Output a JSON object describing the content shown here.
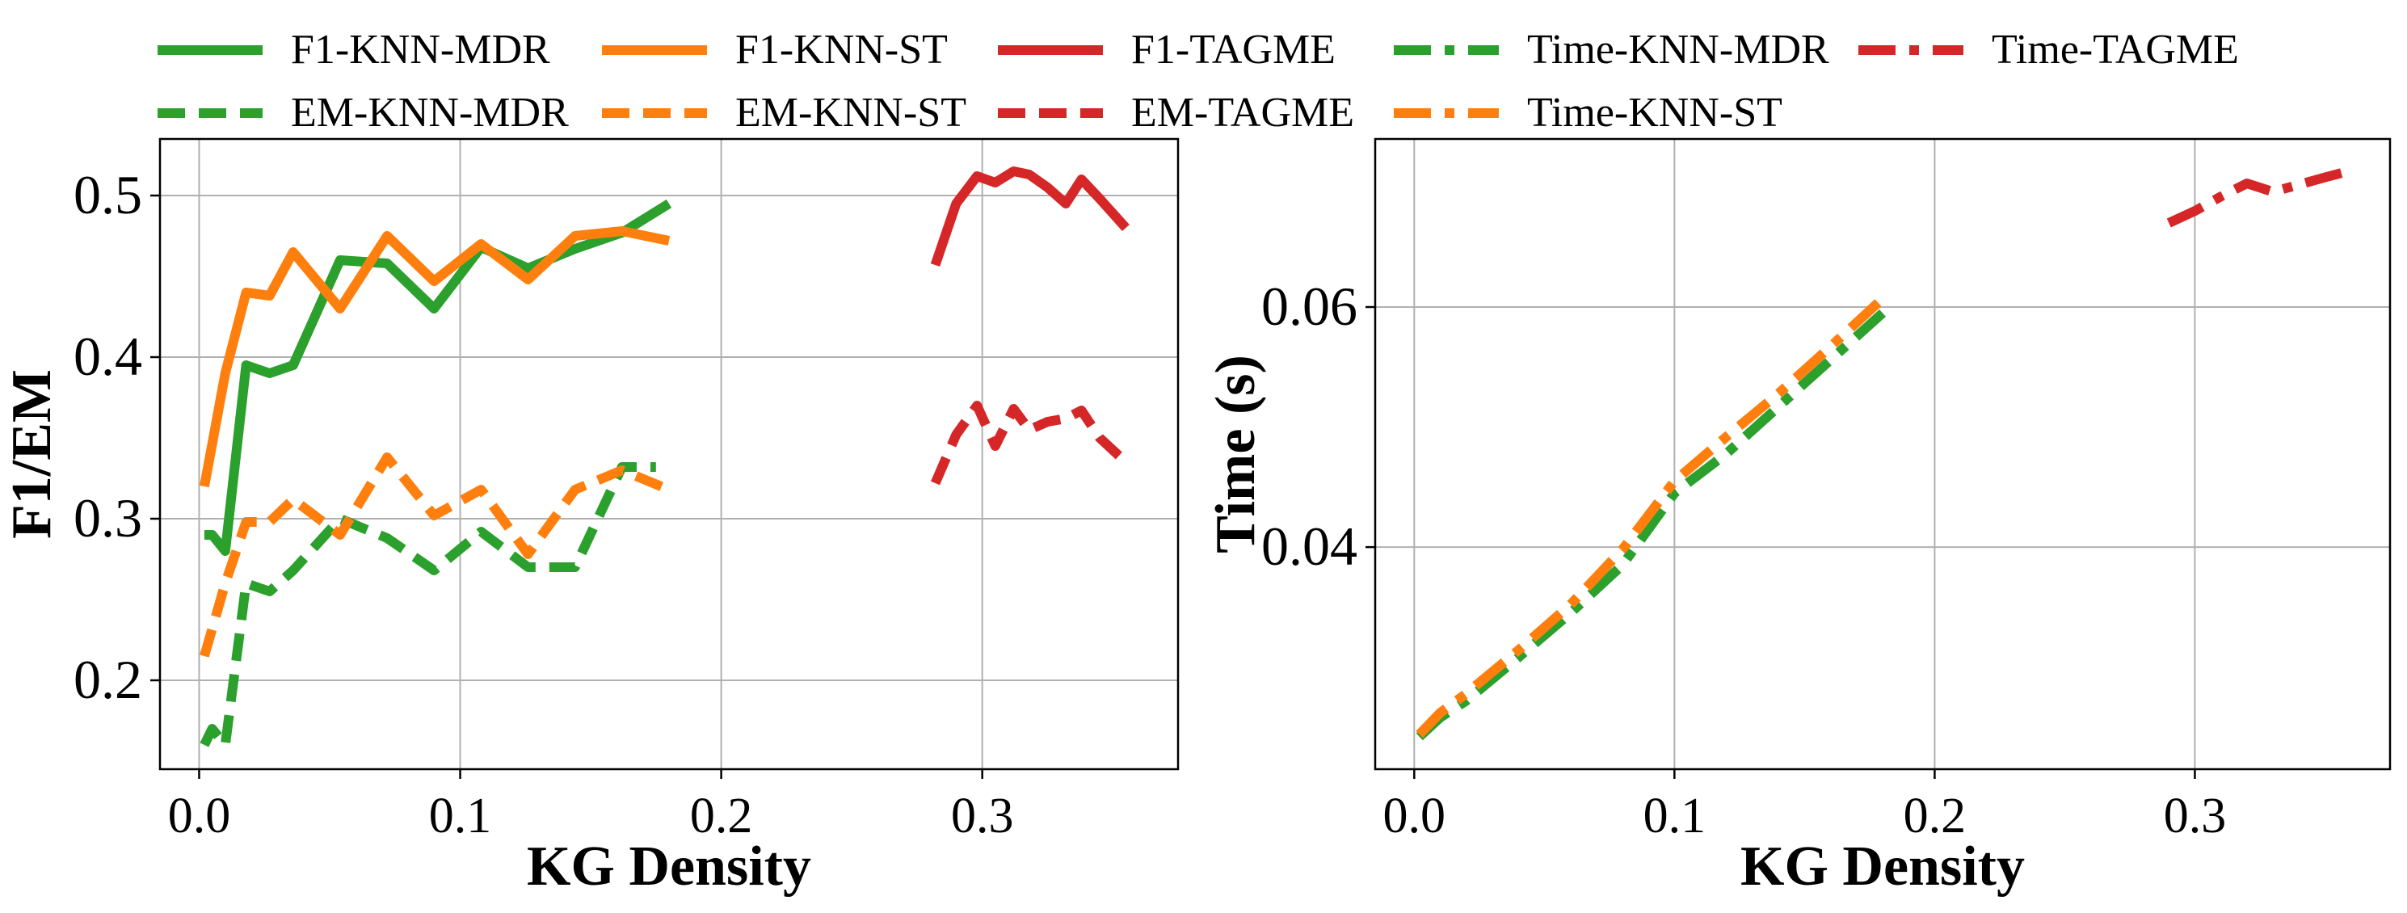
{
  "legend": [
    {
      "label": "F1-KNN-MDR",
      "color": "#2ca02c",
      "style": "solid"
    },
    {
      "label": "F1-KNN-ST",
      "color": "#ff7f0e",
      "style": "solid"
    },
    {
      "label": "F1-TAGME",
      "color": "#d62728",
      "style": "solid"
    },
    {
      "label": "Time-KNN-MDR",
      "color": "#2ca02c",
      "style": "dashdot"
    },
    {
      "label": "Time-TAGME",
      "color": "#d62728",
      "style": "dashdot"
    },
    {
      "label": "EM-KNN-MDR",
      "color": "#2ca02c",
      "style": "dashed"
    },
    {
      "label": "EM-KNN-ST",
      "color": "#ff7f0e",
      "style": "dashed"
    },
    {
      "label": "EM-TAGME",
      "color": "#d62728",
      "style": "dashed"
    },
    {
      "label": "Time-KNN-ST",
      "color": "#ff7f0e",
      "style": "dashdot"
    }
  ],
  "chart_data": [
    {
      "type": "line",
      "xlabel": "KG Density",
      "ylabel": "F1/EM",
      "xlim": [
        -0.015,
        0.375
      ],
      "ylim": [
        0.145,
        0.535
      ],
      "xticks": [
        0.0,
        0.1,
        0.2,
        0.3
      ],
      "xtick_labels": [
        "0.0",
        "0.1",
        "0.2",
        "0.3"
      ],
      "yticks": [
        0.2,
        0.3,
        0.4,
        0.5
      ],
      "ytick_labels": [
        "0.2",
        "0.3",
        "0.4",
        "0.5"
      ],
      "grid": true,
      "series": [
        {
          "name": "F1-KNN-MDR",
          "color": "#2ca02c",
          "style": "solid",
          "x": [
            0.002,
            0.005,
            0.01,
            0.018,
            0.027,
            0.036,
            0.054,
            0.072,
            0.09,
            0.108,
            0.126,
            0.144,
            0.162,
            0.18
          ],
          "y": [
            0.29,
            0.29,
            0.28,
            0.395,
            0.39,
            0.395,
            0.46,
            0.458,
            0.43,
            0.468,
            0.455,
            0.467,
            0.477,
            0.495
          ]
        },
        {
          "name": "F1-KNN-ST",
          "color": "#ff7f0e",
          "style": "solid",
          "x": [
            0.002,
            0.01,
            0.018,
            0.027,
            0.036,
            0.054,
            0.072,
            0.09,
            0.108,
            0.126,
            0.144,
            0.162,
            0.18
          ],
          "y": [
            0.32,
            0.39,
            0.44,
            0.438,
            0.465,
            0.43,
            0.475,
            0.447,
            0.47,
            0.448,
            0.475,
            0.478,
            0.472
          ]
        },
        {
          "name": "F1-TAGME",
          "color": "#d62728",
          "style": "solid",
          "x": [
            0.282,
            0.29,
            0.298,
            0.305,
            0.312,
            0.318,
            0.325,
            0.332,
            0.338,
            0.345,
            0.355
          ],
          "y": [
            0.457,
            0.495,
            0.512,
            0.508,
            0.515,
            0.513,
            0.505,
            0.495,
            0.51,
            0.498,
            0.48
          ]
        },
        {
          "name": "EM-KNN-MDR",
          "color": "#2ca02c",
          "style": "dashed",
          "x": [
            0.002,
            0.005,
            0.01,
            0.018,
            0.027,
            0.036,
            0.054,
            0.072,
            0.09,
            0.108,
            0.126,
            0.144,
            0.162,
            0.175
          ],
          "y": [
            0.16,
            0.17,
            0.16,
            0.26,
            0.255,
            0.268,
            0.3,
            0.288,
            0.268,
            0.292,
            0.27,
            0.27,
            0.332,
            0.332
          ]
        },
        {
          "name": "EM-KNN-ST",
          "color": "#ff7f0e",
          "style": "dashed",
          "x": [
            0.002,
            0.01,
            0.018,
            0.027,
            0.036,
            0.054,
            0.072,
            0.09,
            0.108,
            0.126,
            0.144,
            0.162,
            0.18
          ],
          "y": [
            0.215,
            0.26,
            0.298,
            0.298,
            0.312,
            0.29,
            0.338,
            0.302,
            0.318,
            0.278,
            0.318,
            0.33,
            0.318
          ]
        },
        {
          "name": "EM-TAGME",
          "color": "#d62728",
          "style": "dashed",
          "x": [
            0.282,
            0.29,
            0.298,
            0.305,
            0.312,
            0.318,
            0.325,
            0.332,
            0.338,
            0.345,
            0.355
          ],
          "y": [
            0.322,
            0.352,
            0.37,
            0.345,
            0.368,
            0.355,
            0.36,
            0.362,
            0.367,
            0.35,
            0.335
          ]
        }
      ]
    },
    {
      "type": "line",
      "xlabel": "KG Density",
      "ylabel": "Time (s)",
      "xlim": [
        -0.015,
        0.375
      ],
      "ylim": [
        0.0215,
        0.074
      ],
      "xticks": [
        0.0,
        0.1,
        0.2,
        0.3
      ],
      "xtick_labels": [
        "0.0",
        "0.1",
        "0.2",
        "0.3"
      ],
      "yticks": [
        0.04,
        0.06
      ],
      "ytick_labels": [
        "0.04",
        "0.06"
      ],
      "grid": true,
      "series": [
        {
          "name": "Time-KNN-MDR",
          "color": "#2ca02c",
          "style": "dashdot",
          "x": [
            0.002,
            0.01,
            0.02,
            0.04,
            0.06,
            0.08,
            0.1,
            0.12,
            0.14,
            0.16,
            0.18
          ],
          "y": [
            0.0242,
            0.0258,
            0.0272,
            0.0308,
            0.0345,
            0.0385,
            0.0445,
            0.0478,
            0.0517,
            0.0556,
            0.0595
          ]
        },
        {
          "name": "Time-KNN-ST",
          "color": "#ff7f0e",
          "style": "dashdot",
          "x": [
            0.002,
            0.01,
            0.02,
            0.04,
            0.06,
            0.08,
            0.1,
            0.12,
            0.14,
            0.16,
            0.18
          ],
          "y": [
            0.0244,
            0.0262,
            0.0278,
            0.0314,
            0.0352,
            0.0398,
            0.0455,
            0.0492,
            0.0528,
            0.0567,
            0.0607
          ]
        },
        {
          "name": "Time-TAGME",
          "color": "#d62728",
          "style": "dashdot",
          "x": [
            0.29,
            0.3,
            0.31,
            0.32,
            0.33,
            0.34,
            0.35,
            0.357
          ],
          "y": [
            0.067,
            0.068,
            0.0692,
            0.0703,
            0.0696,
            0.0702,
            0.0708,
            0.0712
          ]
        }
      ]
    }
  ]
}
